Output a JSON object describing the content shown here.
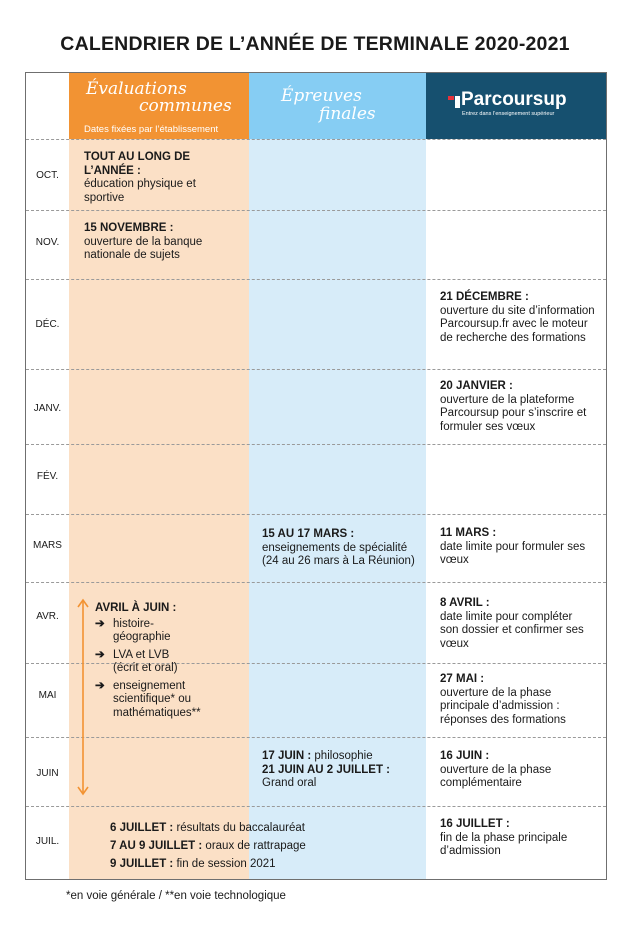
{
  "title": "CALENDRIER DE L’ANNÉE DE TERMINALE 2020-2021",
  "headers": {
    "eval_line1": "Évaluations",
    "eval_line2": "communes",
    "eval_sub": "Dates fixées par l’établissement",
    "ep_line1": "Épreuves",
    "ep_line2": "finales",
    "ps_logo": "Parcoursup",
    "ps_sub": "Entrez dans l’enseignement supérieur"
  },
  "months": [
    "OCT.",
    "NOV.",
    "DÉC.",
    "JANV.",
    "FÉV.",
    "MARS",
    "AVR.",
    "MAI",
    "JUIN",
    "JUIL."
  ],
  "eval": {
    "oct_bold": "TOUT AU LONG DE L’ANNÉE :",
    "oct_text": "éducation physique et sportive",
    "nov_bold": "15 NOVEMBRE :",
    "nov_text": "ouverture de la banque nationale de sujets",
    "avr_bold": "AVRIL À JUIN :",
    "items": [
      "histoire-géographie",
      "LVA et LVB (écrit et oral)",
      "enseignement scientifique* ou mathématiques**"
    ]
  },
  "ep": {
    "mars_bold": "15 AU 17 MARS :",
    "mars_text": "enseignements de spécialité (24 au 26 mars à La Réunion)",
    "juin1_bold": "17 JUIN :",
    "juin1_text": " philosophie",
    "juin2_bold": "21 JUIN AU 2 JUILLET :",
    "juin2_text": "Grand oral"
  },
  "juil": [
    {
      "bold": "6 JUILLET :",
      "text": " résultats du baccalauréat"
    },
    {
      "bold": "7 AU 9 JUILLET :",
      "text": " oraux de rattrapage"
    },
    {
      "bold": "9 JUILLET :",
      "text": " fin de session 2021"
    }
  ],
  "ps": {
    "dec_bold": "21 DÉCEMBRE :",
    "dec_text": "ouverture du site d’information Parcoursup.fr avec le moteur de recherche des formations",
    "janv_bold": "20 JANVIER :",
    "janv_text": "ouverture de la plateforme Parcoursup pour s’inscrire et formuler ses vœux",
    "mars_bold": "11 MARS :",
    "mars_text": "date limite pour formuler ses vœux",
    "avr_bold": "8 AVRIL :",
    "avr_text": "date limite pour compléter son dossier et confirmer ses vœux",
    "mai_bold": "27 MAI :",
    "mai_text": "ouverture de la phase principale d’admission : réponses des formations",
    "juin_bold": "16 JUIN :",
    "juin_text": "ouverture de la phase complémentaire",
    "juil_bold": "16 JUILLET :",
    "juil_text": "fin de la phase principale d’admission"
  },
  "footnote": "*en voie générale / **en voie technologique",
  "colors": {
    "eval_header": "#f29333",
    "eval_col": "#fbe0c6",
    "ep_header": "#86cdf3",
    "ep_col": "#d7ecf9",
    "ps_header": "#16506f",
    "ps_accent": "#e5323b"
  }
}
